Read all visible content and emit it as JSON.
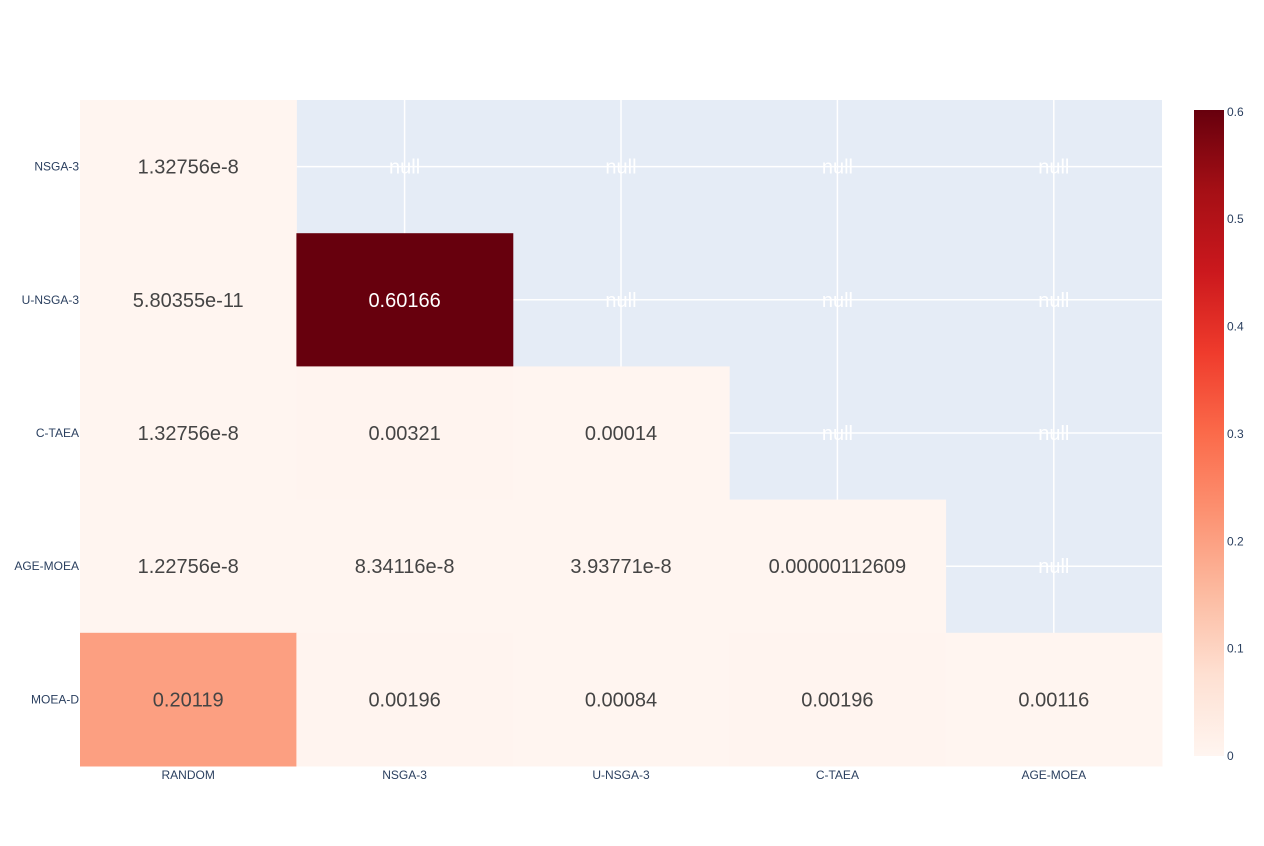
{
  "chart_data": {
    "type": "heatmap",
    "x_categories": [
      "RANDOM",
      "NSGA-3",
      "U-NSGA-3",
      "C-TAEA",
      "AGE-MOEA"
    ],
    "y_categories": [
      "NSGA-3",
      "U-NSGA-3",
      "C-TAEA",
      "AGE-MOEA",
      "MOEA-D"
    ],
    "values": [
      [
        1.32756e-08,
        null,
        null,
        null,
        null
      ],
      [
        5.80355e-11,
        0.60166,
        null,
        null,
        null
      ],
      [
        1.32756e-08,
        0.00321,
        0.00014,
        null,
        null
      ],
      [
        1.22756e-08,
        8.34116e-08,
        3.93771e-08,
        1.12609e-06,
        null
      ],
      [
        0.20119,
        0.00196,
        0.00084,
        0.00196,
        0.00116
      ]
    ],
    "cell_text": [
      [
        "1.32756e-8",
        "null",
        "null",
        "null",
        "null"
      ],
      [
        "5.80355e-11",
        "0.60166",
        "null",
        "null",
        "null"
      ],
      [
        "1.32756e-8",
        "0.00321",
        "0.00014",
        "null",
        "null"
      ],
      [
        "1.22756e-8",
        "8.34116e-8",
        "3.93771e-8",
        "0.00000112609",
        "null"
      ],
      [
        "0.20119",
        "0.00196",
        "0.00084",
        "0.00196",
        "0.00116"
      ]
    ],
    "colorscale": "Reds",
    "zlim": [
      0,
      0.60166
    ],
    "colorbar_ticks": [
      0,
      0.1,
      0.2,
      0.3,
      0.4,
      0.5,
      0.6
    ],
    "colorbar_tick_labels": [
      "0",
      "0.1",
      "0.2",
      "0.3",
      "0.4",
      "0.5",
      "0.6"
    ],
    "grid": true,
    "plot_bgcolor": "#e5ecf6"
  }
}
